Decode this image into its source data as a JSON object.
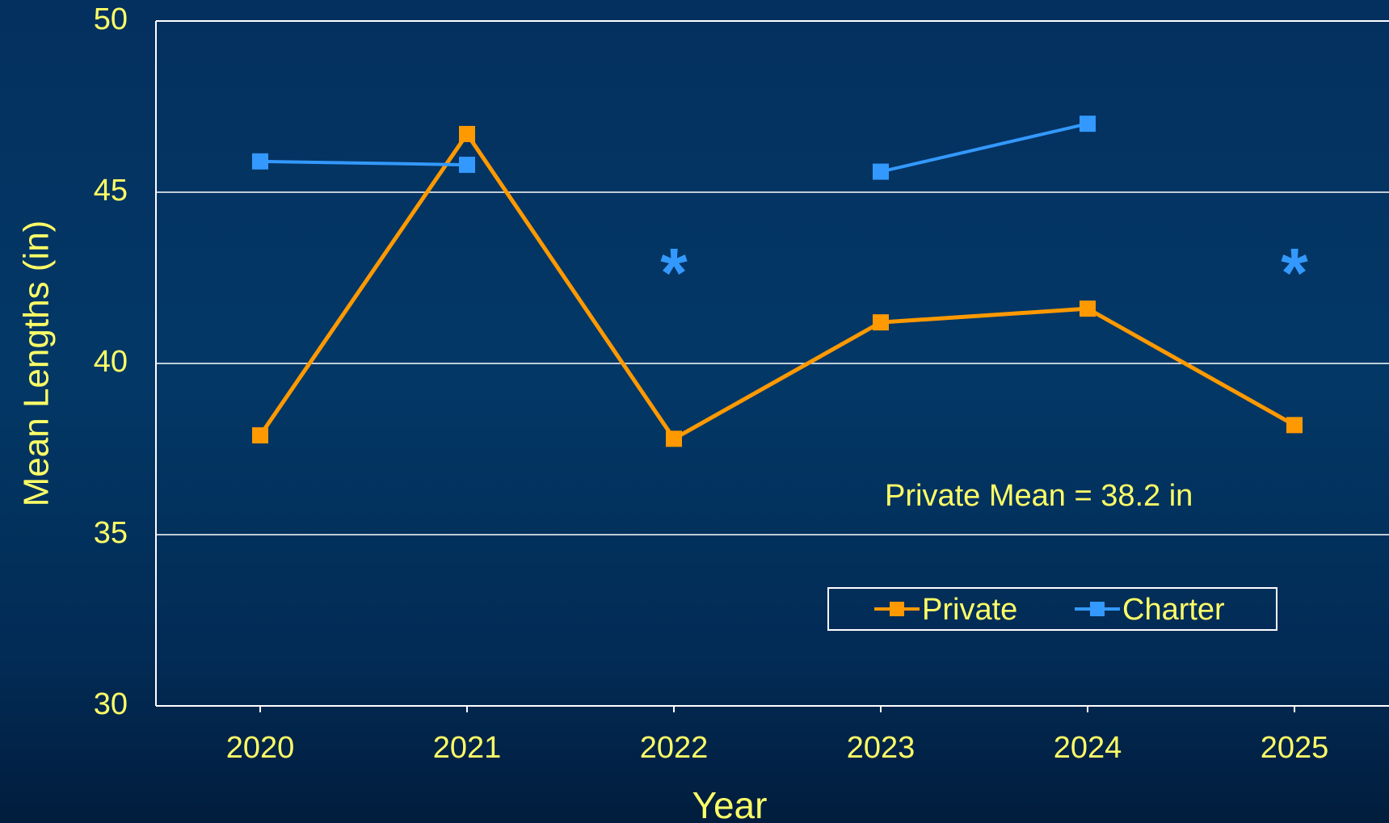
{
  "chart_data": {
    "type": "line",
    "title": "",
    "xlabel": "Year",
    "ylabel": "Mean Lengths (in)",
    "categories": [
      "2020",
      "2021",
      "2022",
      "2023",
      "2024",
      "2025"
    ],
    "ylim": [
      30,
      50
    ],
    "yticks": [
      "30",
      "35",
      "40",
      "45",
      "50"
    ],
    "grid": true,
    "series": [
      {
        "name": "Private",
        "color": "#ff9900",
        "values": [
          37.9,
          46.7,
          37.8,
          41.2,
          41.6,
          38.2
        ]
      },
      {
        "name": "Charter",
        "color": "#3399ff",
        "values": [
          45.9,
          45.8,
          null,
          45.6,
          47.0,
          null
        ]
      }
    ],
    "markers": [
      {
        "category": "2022",
        "symbol": "*",
        "y": 42.8
      },
      {
        "category": "2025",
        "symbol": "*",
        "y": 42.8
      }
    ],
    "annotation": "Private Mean = 38.2 in",
    "legend_position": "bottom-right"
  }
}
